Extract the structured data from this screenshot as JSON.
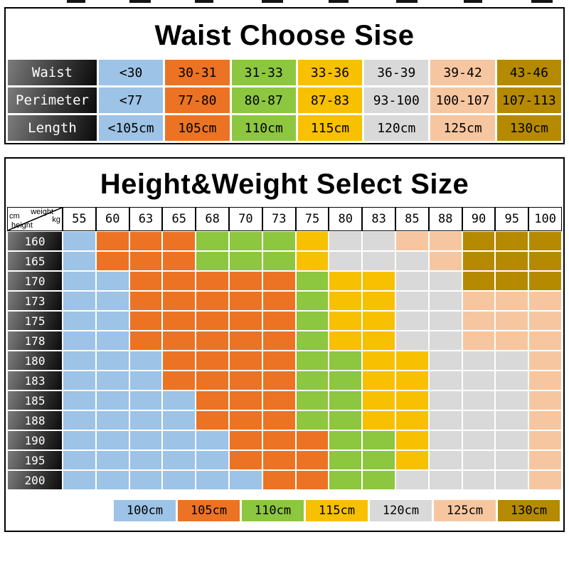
{
  "page": {
    "background": "#ffffff"
  },
  "chart_data": [
    {
      "type": "table",
      "title": "Waist Choose Sise",
      "row_headers": [
        "Waist",
        "Perimeter",
        "Length"
      ],
      "rows": [
        [
          "<30",
          "30-31",
          "31-33",
          "33-36",
          "36-39",
          "39-42",
          "43-46"
        ],
        [
          "<77",
          "77-80",
          "80-87",
          "87-83",
          "93-100",
          "100-107",
          "107-113"
        ],
        [
          "<105cm",
          "105cm",
          "110cm",
          "115cm",
          "120cm",
          "125cm",
          "130cm"
        ]
      ],
      "column_colors": [
        "#9DC3E6",
        "#EC7323",
        "#8DC63F",
        "#F7C000",
        "#D9D9D9",
        "#F6C6A0",
        "#B58A00"
      ],
      "header_text_color": "#ffffff"
    },
    {
      "type": "heatmap",
      "title": "Height&Weight Select Size",
      "corner": {
        "weight": "weight",
        "kg": "kg",
        "cm": "cm",
        "height": "height"
      },
      "x": [
        "55",
        "60",
        "63",
        "65",
        "68",
        "70",
        "73",
        "75",
        "80",
        "83",
        "85",
        "88",
        "90",
        "95",
        "100"
      ],
      "y": [
        "160",
        "165",
        "170",
        "173",
        "175",
        "178",
        "180",
        "183",
        "185",
        "188",
        "190",
        "195",
        "200"
      ],
      "matrix_codes": [
        "BOOOGGGYEEPPDDD",
        "BOOOGGGYEEEPDDD",
        "BBOOOOOGYYEEDDD",
        "BBOOOOOGYYEEPPP",
        "BBOOOOOGYYEEPPP",
        "BBOOOOOGYYEEPPP",
        "BBBOOOOGGYYEEEP",
        "BBBOOOOGGYYEEEP",
        "BBBBOOOGGYYEEEP",
        "BBBBOOOGGYYEEEP",
        "BBBBBOOOGGYEEEP",
        "BBBBBOOOGGYEEEP",
        "BBBBBBOOGGEEEEP"
      ],
      "code_sizes": {
        "B": "100cm",
        "O": "105cm",
        "G": "110cm",
        "Y": "115cm",
        "E": "120cm",
        "P": "125cm",
        "D": "130cm"
      },
      "palette": {
        "100cm": "#9DC3E6",
        "105cm": "#EC7323",
        "110cm": "#8DC63F",
        "115cm": "#F7C000",
        "120cm": "#D9D9D9",
        "125cm": "#F6C6A0",
        "130cm": "#B58A00"
      },
      "legend": [
        "100cm",
        "105cm",
        "110cm",
        "115cm",
        "120cm",
        "125cm",
        "130cm"
      ]
    }
  ]
}
